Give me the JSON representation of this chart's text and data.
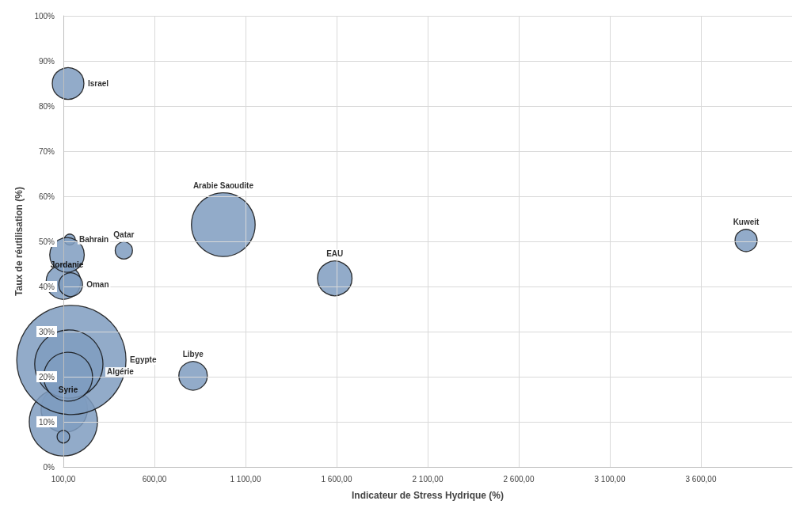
{
  "chart_data": {
    "type": "bubble",
    "xlabel": "Indicateur de Stress Hydrique (%)",
    "ylabel": "Taux de réutilisation (%)",
    "series": [
      {
        "name": "Israel",
        "color": "#7f9cc0",
        "x": [
          126
        ],
        "values": [
          85
        ],
        "sizes": [
          0.084
        ]
      },
      {
        "name": "Arabie Saoudite",
        "color": "#7f9cc0",
        "x": [
          978
        ],
        "values": [
          53.7
        ],
        "sizes": [
          0.34
        ]
      },
      {
        "name": "EAU",
        "color": "#7f9cc0",
        "x": [
          1590
        ],
        "values": [
          41.8
        ],
        "sizes": [
          0.1
        ]
      },
      {
        "name": "Kuweit",
        "color": "#7f9cc0",
        "x": [
          3848
        ],
        "values": [
          50.2
        ],
        "sizes": [
          0.041
        ]
      },
      {
        "name": "Libye",
        "color": "#7f9cc0",
        "x": [
          812
        ],
        "values": [
          20.2
        ],
        "sizes": [
          0.068
        ]
      },
      {
        "name": "Qatar",
        "color": "#7f9cc0",
        "x": [
          432
        ],
        "values": [
          48
        ],
        "sizes": [
          0.025
        ]
      },
      {
        "name": "Bahrain",
        "color": "#7f9cc0",
        "x": [
          135
        ],
        "values": [
          50.4
        ],
        "sizes": [
          0.01
        ]
      },
      {
        "name": "Jordanie",
        "color": "#7f9cc0",
        "x": [
          120
        ],
        "values": [
          47
        ],
        "sizes": [
          0.1
        ]
      },
      {
        "name": "Oman",
        "color": "#7f9cc0",
        "x": [
          140
        ],
        "values": [
          40.4
        ],
        "sizes": [
          0.047
        ]
      },
      {
        "color": "#7f9cc0",
        "x": [
          100
        ],
        "values": [
          41
        ],
        "sizes": [
          0.1
        ]
      },
      {
        "name": "Egypte",
        "color": "#7f9cc0",
        "x": [
          144
        ],
        "values": [
          23.7
        ],
        "sizes": [
          1
        ]
      },
      {
        "name": "Algérie",
        "color": "#7f9cc0",
        "x": [
          130
        ],
        "values": [
          22.8
        ],
        "sizes": [
          0.39
        ]
      },
      {
        "name": "Syrie",
        "color": "#7f9cc0",
        "x": [
          126
        ],
        "values": [
          20
        ],
        "sizes": [
          0.2
        ]
      },
      {
        "color": "#7f9cc0",
        "x": [
          105
        ],
        "values": [
          12.8
        ],
        "sizes": [
          0.18
        ]
      },
      {
        "color": "#7f9cc0",
        "x": [
          100
        ],
        "values": [
          10
        ],
        "sizes": [
          0.39
        ]
      },
      {
        "color": "#7f9cc0",
        "x": [
          100
        ],
        "values": [
          6.7
        ],
        "sizes": [
          0.013
        ]
      }
    ],
    "xlim": [
      100,
      4100
    ],
    "xticks": [
      {
        "value": 100,
        "label": "100,00"
      },
      {
        "value": 600,
        "label": "600,00"
      },
      {
        "value": 1100,
        "label": "1 100,00"
      },
      {
        "value": 1600,
        "label": "1 600,00"
      },
      {
        "value": 2100,
        "label": "2 100,00"
      },
      {
        "value": 2600,
        "label": "2 600,00"
      },
      {
        "value": 3100,
        "label": "3 100,00"
      },
      {
        "value": 3600,
        "label": "3 600,00"
      }
    ],
    "ylim": [
      0,
      100
    ],
    "yticks": [
      {
        "value": 0,
        "label": "0%"
      },
      {
        "value": 10,
        "label": "10%"
      },
      {
        "value": 20,
        "label": "20%"
      },
      {
        "value": 30,
        "label": "30%"
      },
      {
        "value": 40,
        "label": "40%"
      },
      {
        "value": 50,
        "label": "50%"
      },
      {
        "value": 60,
        "label": "60%"
      },
      {
        "value": 70,
        "label": "70%"
      },
      {
        "value": 80,
        "label": "80%"
      },
      {
        "value": 90,
        "label": "90%"
      },
      {
        "value": 100,
        "label": "100%"
      }
    ],
    "grid": true,
    "legend": false
  }
}
